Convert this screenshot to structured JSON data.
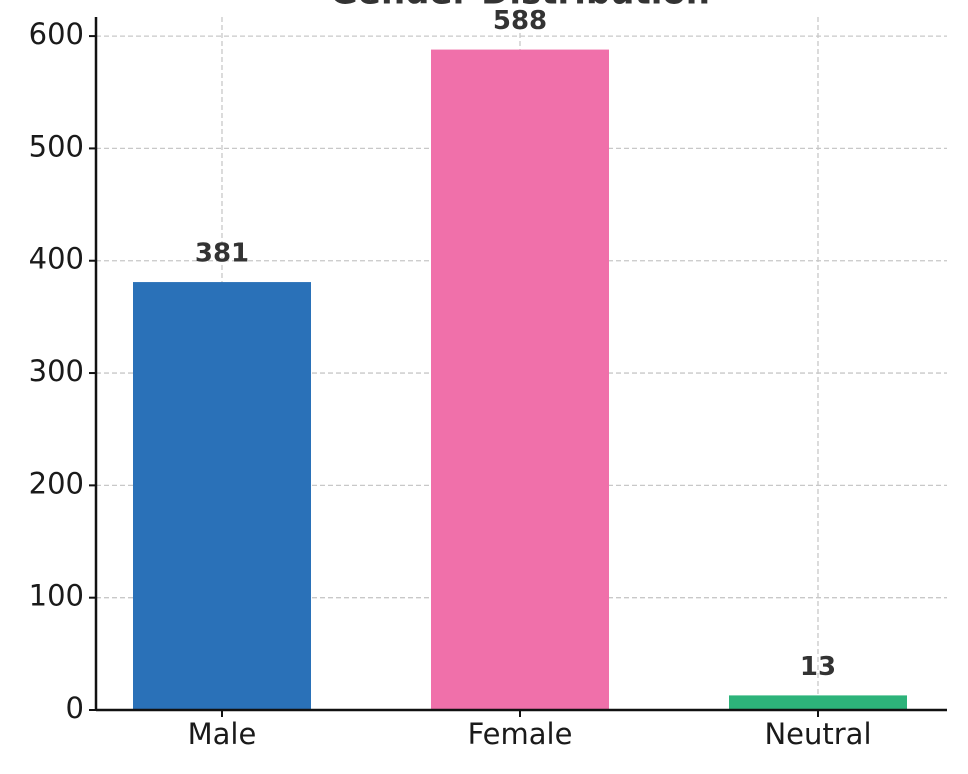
{
  "chart_data": {
    "type": "bar",
    "title": "Gender Distribution",
    "categories": [
      "Male",
      "Female",
      "Neutral"
    ],
    "values": [
      381,
      588,
      13
    ],
    "colors": [
      "#2a71b8",
      "#f070aa",
      "#2db37a"
    ],
    "ylim": [
      0,
      617
    ],
    "yticks": [
      0,
      100,
      200,
      300,
      400,
      500,
      600
    ],
    "grid": true
  }
}
